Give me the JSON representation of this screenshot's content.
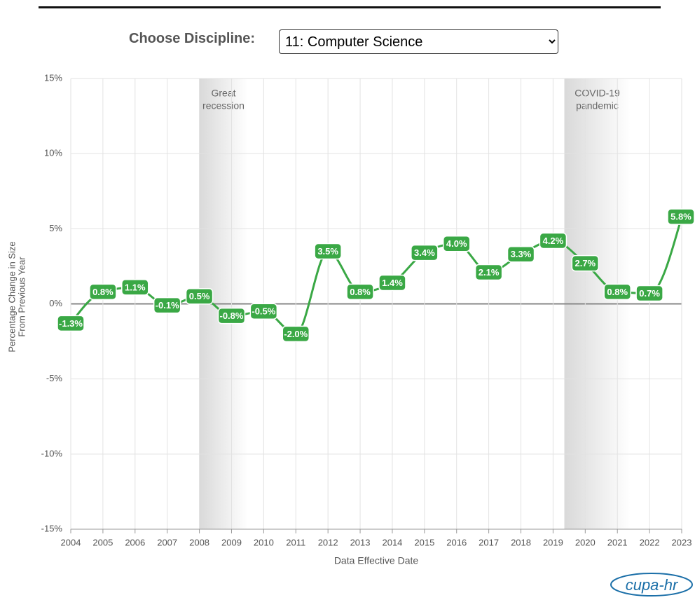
{
  "header": {
    "label": "Choose Discipline:",
    "selected": "11: Computer Science"
  },
  "chart_data": {
    "type": "line",
    "x": [
      2004,
      2005,
      2006,
      2007,
      2008,
      2009,
      2010,
      2011,
      2012,
      2013,
      2014,
      2015,
      2016,
      2017,
      2018,
      2019,
      2020,
      2021,
      2022,
      2023
    ],
    "series": [
      {
        "name": "11: Computer Science",
        "color": "#3aa845",
        "values": [
          -1.3,
          0.8,
          1.1,
          -0.1,
          0.5,
          -0.8,
          -0.5,
          -2.0,
          3.5,
          0.8,
          1.4,
          3.4,
          4.0,
          2.1,
          3.3,
          4.2,
          2.7,
          0.8,
          0.7,
          5.8
        ],
        "value_labels": [
          "-1.3%",
          "0.8%",
          "1.1%",
          "-0.1%",
          "0.5%",
          "-0.8%",
          "-0.5%",
          "-2.0%",
          "3.5%",
          "0.8%",
          "1.4%",
          "3.4%",
          "4.0%",
          "2.1%",
          "3.3%",
          "4.2%",
          "2.7%",
          "0.8%",
          "0.7%",
          "5.8%"
        ]
      }
    ],
    "xlim": [
      2004,
      2023
    ],
    "xticks": [
      2004,
      2005,
      2006,
      2007,
      2008,
      2009,
      2010,
      2011,
      2012,
      2013,
      2014,
      2015,
      2016,
      2017,
      2018,
      2019,
      2020,
      2021,
      2022,
      2023
    ],
    "ylim": [
      -15,
      15
    ],
    "yticks": [
      {
        "value": -15,
        "label": "-15%"
      },
      {
        "value": -10,
        "label": "-10%"
      },
      {
        "value": -5,
        "label": "-5%"
      },
      {
        "value": 0,
        "label": "0%"
      },
      {
        "value": 5,
        "label": "5%"
      },
      {
        "value": 10,
        "label": "10%"
      },
      {
        "value": 15,
        "label": "15%"
      }
    ],
    "xlabel": "Data Effective Date",
    "ylabel": [
      "Percentage Change in Size",
      "From Previous Year"
    ],
    "grid": true,
    "shaded_regions": [
      {
        "label": [
          "Great",
          "recession"
        ],
        "start": 2008,
        "end": 2009.5
      },
      {
        "label": [
          "COVID-19",
          "pandemic"
        ],
        "start": 2019.35,
        "end": 2021.4
      }
    ]
  },
  "logo": "cupa-hr"
}
